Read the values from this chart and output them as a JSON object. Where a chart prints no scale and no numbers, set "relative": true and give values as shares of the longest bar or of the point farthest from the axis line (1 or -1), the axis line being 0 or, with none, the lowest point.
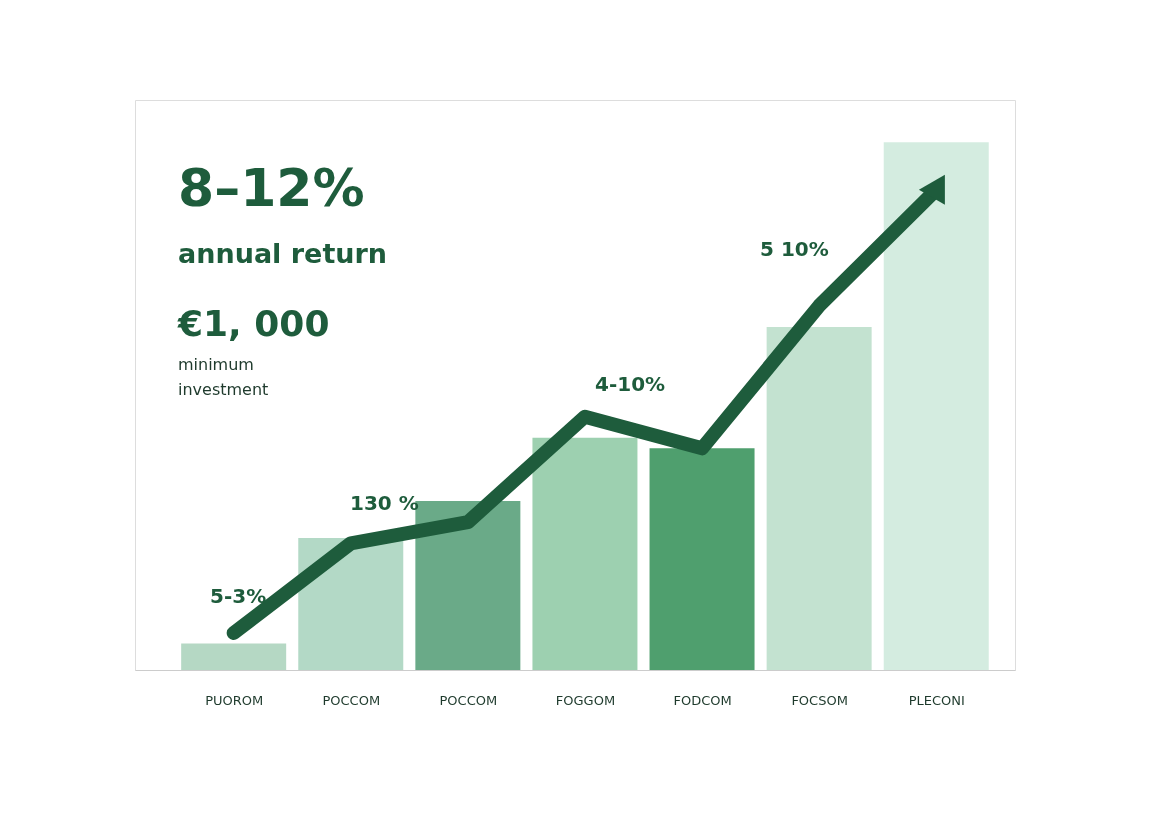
{
  "chart_data": {
    "type": "bar",
    "relative": true,
    "grid": false,
    "categories": [
      "PUOROM",
      "POCCOM",
      "POCCOM",
      "FOGGOM",
      "FODCOM",
      "FOCSOM",
      "PLECONI"
    ],
    "values": [
      0.05,
      0.25,
      0.32,
      0.44,
      0.42,
      0.65,
      1.0
    ],
    "colors": [
      "#b5d8c4",
      "#b3d9c6",
      "#6aaa88",
      "#9dd0b0",
      "#4f9f6e",
      "#c3e2d0",
      "#d4ece0"
    ],
    "series": [
      {
        "type": "line",
        "color": "#1e5c3c",
        "values": [
          0.07,
          0.24,
          0.28,
          0.48,
          0.42,
          0.69,
          0.91
        ]
      }
    ],
    "line_style": "solid",
    "annotations": [
      "8–12%",
      "annual return",
      "€1, 000",
      "minimum",
      "investment",
      "5-3%",
      "130 %",
      "4-10%",
      "5 10%"
    ]
  }
}
